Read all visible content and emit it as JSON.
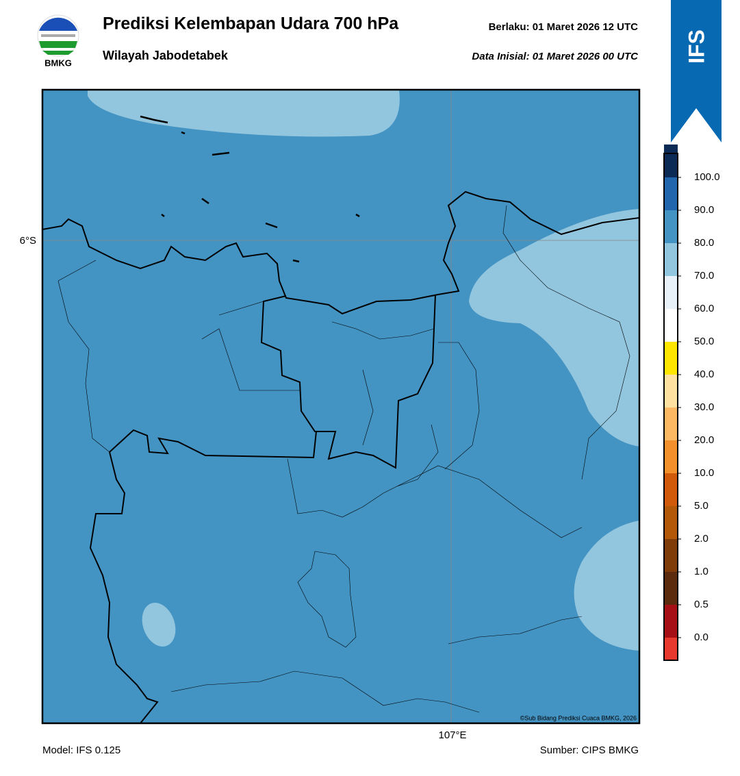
{
  "header": {
    "logo_text": "BMKG",
    "title": "Prediksi Kelembapan Udara 700 hPa",
    "subtitle": "Wilayah Jabodetabek",
    "valid_label": "Berlaku:  01 Maret 2026 12 UTC",
    "init_label": "Data Inisial:  01 Maret 2026 00 UTC",
    "model_badge": "IFS"
  },
  "map": {
    "lat_label": "6°S",
    "lon_label": "107°E",
    "copyright": "©Sub Bidang Prediksi Cuaca BMKG, 2026"
  },
  "colorbar": {
    "labels": [
      "0.0",
      "0.5",
      "1.0",
      "2.0",
      "5.0",
      "10.0",
      "20.0",
      "30.0",
      "40.0",
      "50.0",
      "60.0",
      "70.0",
      "80.0",
      "90.0",
      "100.0"
    ],
    "colors": [
      "#e8392e",
      "#a50f15",
      "#5c2a0d",
      "#7f3b08",
      "#b35806",
      "#d05a0a",
      "#f4902b",
      "#fdb863",
      "#fee0a0",
      "#ffe600",
      "#ffffff",
      "#e8f0f8",
      "#92c5de",
      "#4393c3",
      "#2166ac",
      "#0b2a55",
      "#2d004b"
    ]
  },
  "footer": {
    "model": "Model: IFS 0.125",
    "source": "Sumber: CIPS BMKG"
  }
}
